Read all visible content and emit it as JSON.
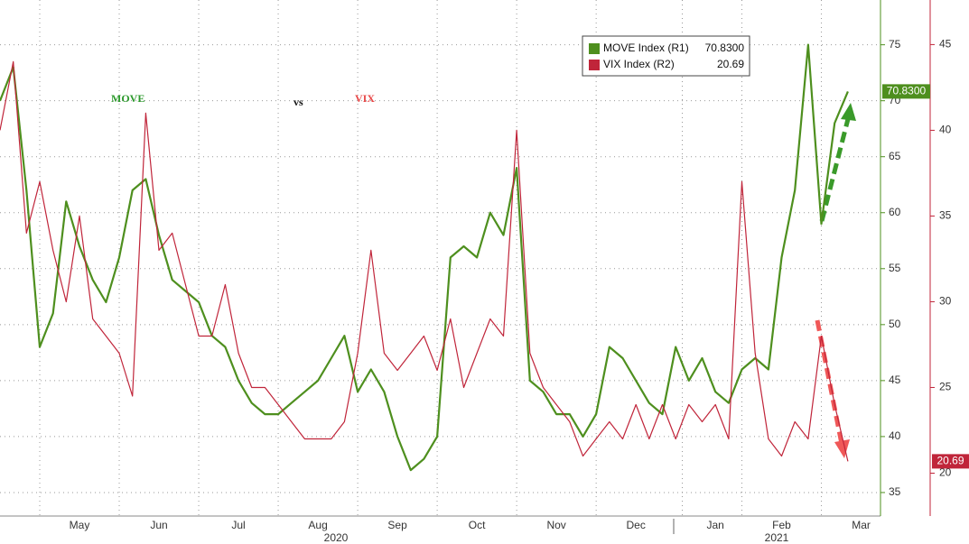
{
  "chart_data": {
    "type": "line",
    "title": [
      "MOVE",
      "vs",
      "VIX"
    ],
    "categories": [
      null,
      null,
      null,
      null,
      null,
      null,
      "May",
      null,
      null,
      null,
      null,
      null,
      "Jun",
      null,
      null,
      null,
      null,
      null,
      "Jul",
      null,
      null,
      null,
      null,
      null,
      "Aug",
      null,
      null,
      null,
      null,
      null,
      "Sep",
      null,
      null,
      null,
      null,
      null,
      "Oct",
      null,
      null,
      null,
      null,
      null,
      "Nov",
      null,
      null,
      null,
      null,
      null,
      "Dec",
      null,
      null,
      null,
      null,
      null,
      "Jan",
      null,
      null,
      null,
      null,
      "Feb",
      null,
      null,
      null,
      null,
      null,
      "Mar"
    ],
    "years": [
      "2020",
      "2021"
    ],
    "series": [
      {
        "name": "MOVE Index (R1)",
        "color": "#4e8f1e",
        "axis": "y",
        "values": [
          70,
          73,
          62,
          48,
          51,
          61,
          57,
          54,
          52,
          56,
          62,
          63,
          58,
          54,
          53,
          52,
          49,
          48,
          45,
          43,
          42,
          42,
          43,
          44,
          45,
          47,
          49,
          44,
          46,
          44,
          40,
          37,
          38,
          40,
          56,
          57,
          56,
          60,
          58,
          64,
          45,
          44,
          42,
          42,
          40,
          42,
          48,
          47,
          45,
          43,
          42,
          48,
          45,
          47,
          44,
          43,
          46,
          47,
          46,
          56,
          62,
          75,
          59,
          68,
          70.83,
          null
        ],
        "value_labels": [
          null,
          null,
          null,
          null,
          null,
          null,
          null,
          null,
          null,
          null,
          null,
          null,
          null,
          null,
          null,
          null,
          null,
          null,
          null,
          null,
          null,
          null,
          null,
          null,
          null,
          null,
          null,
          null,
          null,
          null,
          null,
          null,
          null,
          null,
          null,
          null,
          null,
          null,
          null,
          null,
          null,
          null,
          null,
          null,
          null,
          null,
          null,
          null,
          null,
          null,
          null,
          null,
          null,
          null,
          null,
          null,
          null,
          null,
          null,
          null,
          null,
          null,
          null,
          null,
          "70.8300",
          null
        ]
      },
      {
        "name": "VIX Index (R2)",
        "color": "#c0253a",
        "axis": "y2",
        "values": [
          40,
          44,
          34,
          37,
          33,
          30,
          35,
          29,
          28,
          27,
          24.5,
          41,
          33,
          34,
          31,
          28,
          28,
          31,
          27,
          25,
          25,
          24,
          23,
          22,
          22,
          22,
          23,
          27,
          33,
          27,
          26,
          27,
          28,
          26,
          29,
          25,
          27,
          29,
          28,
          40,
          27,
          25,
          24,
          23,
          21,
          22,
          23,
          22,
          24,
          22,
          24,
          22,
          24,
          23,
          24,
          22,
          37,
          27,
          22,
          21,
          23,
          22,
          28,
          24,
          20.69,
          null
        ]
      }
    ],
    "ylim": [
      32.9,
      79
    ],
    "yticks": [
      35,
      40,
      45,
      50,
      55,
      60,
      65,
      70,
      75
    ],
    "y2lim": [
      17.5,
      47.6
    ],
    "y2ticks": [
      20,
      25,
      30,
      35,
      40,
      45
    ],
    "grid": true
  }
}
